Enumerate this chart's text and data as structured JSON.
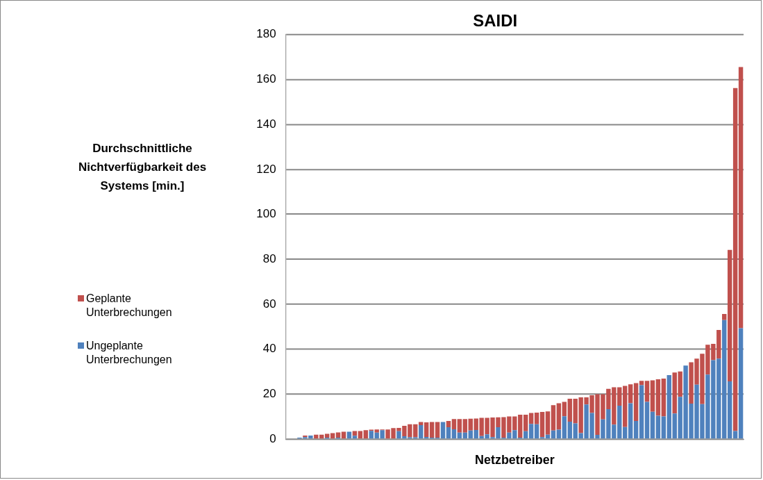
{
  "chart_data": {
    "type": "bar",
    "title": "SAIDI",
    "xlabel": "Netzbetreiber",
    "ylabel": "Durchschnittliche Nichtverfügbarkeit des Systems [min.]",
    "stacked": true,
    "grid": "y",
    "legend": "left",
    "ylim": [
      0,
      180
    ],
    "yticks": [
      0,
      20,
      40,
      60,
      80,
      100,
      120,
      140,
      160,
      180
    ],
    "categories": [
      null,
      null,
      null,
      null,
      null,
      null,
      null,
      null,
      null,
      null,
      null,
      null,
      null,
      null,
      null,
      null,
      null,
      null,
      null,
      null,
      null,
      null,
      null,
      null,
      null,
      null,
      null,
      null,
      null,
      null,
      null,
      null,
      null,
      null,
      null,
      null,
      null,
      null,
      null,
      null,
      null,
      null,
      null,
      null,
      null,
      null,
      null,
      null,
      null,
      null,
      null,
      null,
      null,
      null,
      null,
      null,
      null,
      null,
      null,
      null,
      null,
      null,
      null,
      null,
      null,
      null,
      null,
      null,
      null,
      null,
      null,
      null,
      null,
      null,
      null,
      null,
      null,
      null,
      null,
      null,
      null,
      null,
      null
    ],
    "series": [
      {
        "name": "Ungeplante Unterbrechungen",
        "color": "#4f81bd",
        "values": [
          0,
          0,
          0.7,
          0.9,
          1.6,
          0,
          0,
          0.7,
          0,
          0.7,
          0,
          3.3,
          1.5,
          0,
          0,
          3.7,
          2.9,
          4.0,
          0,
          0,
          3.5,
          1.3,
          0.8,
          0.8,
          6.2,
          1.0,
          0.7,
          0.7,
          7.6,
          5.3,
          4.4,
          2.9,
          2.9,
          3.8,
          4.1,
          1.4,
          2.1,
          0.9,
          5.3,
          0.7,
          2.9,
          4.0,
          0.7,
          3.5,
          6.8,
          6.6,
          0.9,
          2.0,
          3.8,
          4.2,
          10.2,
          7.8,
          7.0,
          2.7,
          15.4,
          11.6,
          1.9,
          8.8,
          13.3,
          6.5,
          14.9,
          5.4,
          16.0,
          8.1,
          24.0,
          16.6,
          12.2,
          10.4,
          10.1,
          28.5,
          11.4,
          18.8,
          32.7,
          15.8,
          24.2,
          15.6,
          28.7,
          35.1,
          35.8,
          53.0,
          25.7,
          3.6,
          49.3
        ]
      },
      {
        "name": "Geplante Unterbrechungen",
        "color": "#c0504d",
        "values": [
          0,
          0,
          0,
          0.7,
          0,
          2.0,
          2.0,
          1.7,
          2.7,
          2.3,
          3.3,
          0,
          2.1,
          3.6,
          4.0,
          0.5,
          1.4,
          0.3,
          4.3,
          4.9,
          1.5,
          4.6,
          5.8,
          5.8,
          1.4,
          6.5,
          6.9,
          6.9,
          0,
          2.8,
          4.5,
          6.0,
          6.0,
          5.3,
          5.1,
          8.1,
          7.4,
          8.7,
          4.4,
          9.1,
          7.2,
          6.1,
          10.2,
          7.4,
          4.8,
          5.2,
          11.2,
          10.3,
          11.3,
          11.8,
          6.4,
          10.2,
          11.0,
          15.9,
          3.2,
          7.9,
          18.1,
          11.2,
          9.1,
          16.6,
          8.2,
          18.3,
          8.4,
          16.8,
          1.9,
          9.3,
          14.0,
          16.2,
          16.8,
          0,
          18.2,
          11.3,
          0,
          18.4,
          11.6,
          22.4,
          13.3,
          7.3,
          12.8,
          2.7,
          58.5,
          152.6,
          116.2
        ]
      }
    ]
  }
}
